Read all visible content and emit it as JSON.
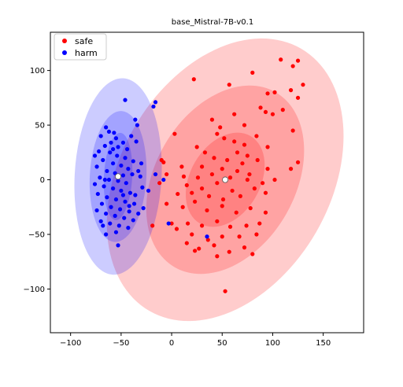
{
  "chart_data": {
    "type": "scatter",
    "title": "base_Mistral-7B-v0.1",
    "xlabel": "",
    "ylabel": "",
    "xlim": [
      -120,
      190
    ],
    "ylim": [
      -140,
      135
    ],
    "xticks": [
      -100,
      -50,
      0,
      50,
      100,
      150
    ],
    "yticks": [
      -100,
      -50,
      0,
      50,
      100
    ],
    "xtick_labels": [
      "−100",
      "−50",
      "0",
      "50",
      "100",
      "150"
    ],
    "ytick_labels": [
      "−100",
      "−50",
      "0",
      "50",
      "100"
    ],
    "legend": {
      "position": "top-left"
    },
    "grid": false,
    "series": [
      {
        "name": "safe",
        "color": "#ff0000",
        "center": [
          53,
          0
        ],
        "ellipses": [
          {
            "rx": 50,
            "ry": 32,
            "angle": 60,
            "opacity": 0.2
          },
          {
            "rx": 100,
            "ry": 64,
            "angle": 60,
            "opacity": 0.2
          },
          {
            "rx": 150,
            "ry": 96,
            "angle": 60,
            "opacity": 0.2
          }
        ],
        "points": [
          [
            108,
            110
          ],
          [
            120,
            104
          ],
          [
            125,
            109
          ],
          [
            130,
            87
          ],
          [
            118,
            82
          ],
          [
            22,
            92
          ],
          [
            57,
            87
          ],
          [
            80,
            98
          ],
          [
            95,
            79
          ],
          [
            102,
            80
          ],
          [
            125,
            75
          ],
          [
            88,
            66
          ],
          [
            93,
            62
          ],
          [
            100,
            60
          ],
          [
            110,
            64
          ],
          [
            62,
            60
          ],
          [
            40,
            55
          ],
          [
            72,
            50
          ],
          [
            48,
            48
          ],
          [
            120,
            45
          ],
          [
            72,
            32
          ],
          [
            95,
            30
          ],
          [
            3,
            42
          ],
          [
            45,
            42
          ],
          [
            52,
            38
          ],
          [
            62,
            35
          ],
          [
            84,
            40
          ],
          [
            25,
            30
          ],
          [
            33,
            25
          ],
          [
            65,
            25
          ],
          [
            75,
            22
          ],
          [
            42,
            20
          ],
          [
            55,
            18
          ],
          [
            70,
            15
          ],
          [
            85,
            18
          ],
          [
            -8,
            16
          ],
          [
            10,
            12
          ],
          [
            30,
            12
          ],
          [
            50,
            10
          ],
          [
            65,
            8
          ],
          [
            77,
            5
          ],
          [
            125,
            16
          ],
          [
            118,
            10
          ],
          [
            95,
            10
          ],
          [
            -5,
            5
          ],
          [
            12,
            3
          ],
          [
            26,
            2
          ],
          [
            40,
            5
          ],
          [
            58,
            2
          ],
          [
            75,
            0
          ],
          [
            90,
            -3
          ],
          [
            102,
            0
          ],
          [
            -12,
            -3
          ],
          [
            15,
            -5
          ],
          [
            30,
            -8
          ],
          [
            45,
            -3
          ],
          [
            60,
            -10
          ],
          [
            82,
            -8
          ],
          [
            6,
            -13
          ],
          [
            20,
            -12
          ],
          [
            37,
            -15
          ],
          [
            51,
            -18
          ],
          [
            68,
            -15
          ],
          [
            93,
            -12
          ],
          [
            -5,
            -22
          ],
          [
            11,
            -25
          ],
          [
            23,
            -20
          ],
          [
            35,
            -28
          ],
          [
            50,
            -24
          ],
          [
            64,
            -30
          ],
          [
            78,
            -26
          ],
          [
            93,
            -30
          ],
          [
            16,
            -40
          ],
          [
            30,
            -42
          ],
          [
            45,
            -38
          ],
          [
            58,
            -43
          ],
          [
            74,
            -42
          ],
          [
            87,
            -40
          ],
          [
            5,
            -45
          ],
          [
            20,
            -50
          ],
          [
            36,
            -55
          ],
          [
            50,
            -52
          ],
          [
            67,
            -52
          ],
          [
            84,
            -50
          ],
          [
            15,
            -58
          ],
          [
            27,
            -63
          ],
          [
            42,
            -60
          ],
          [
            57,
            -66
          ],
          [
            72,
            -62
          ],
          [
            23,
            -65
          ],
          [
            45,
            -70
          ],
          [
            80,
            -68
          ],
          [
            53,
            -102
          ],
          [
            0,
            -40
          ],
          [
            -19,
            -42
          ],
          [
            -10,
            18
          ]
        ]
      },
      {
        "name": "harm",
        "color": "#0000ff",
        "center": [
          -53,
          3
        ],
        "ellipses": [
          {
            "rx": 14,
            "ry": 40,
            "angle": -3,
            "opacity": 0.2
          },
          {
            "rx": 28,
            "ry": 60,
            "angle": -3,
            "opacity": 0.2
          },
          {
            "rx": 43,
            "ry": 90,
            "angle": -3,
            "opacity": 0.2
          }
        ],
        "points": [
          [
            -46,
            73
          ],
          [
            -16,
            71
          ],
          [
            -18,
            67
          ],
          [
            -36,
            55
          ],
          [
            -65,
            48
          ],
          [
            -62,
            44
          ],
          [
            -57,
            43
          ],
          [
            -34,
            50
          ],
          [
            -70,
            40
          ],
          [
            -55,
            38
          ],
          [
            -48,
            34
          ],
          [
            -60,
            34
          ],
          [
            -66,
            31
          ],
          [
            -53,
            30
          ],
          [
            -44,
            28
          ],
          [
            -35,
            35
          ],
          [
            -72,
            26
          ],
          [
            -61,
            25
          ],
          [
            -54,
            22
          ],
          [
            -46,
            20
          ],
          [
            -38,
            17
          ],
          [
            -30,
            15
          ],
          [
            -68,
            18
          ],
          [
            -58,
            15
          ],
          [
            -50,
            13
          ],
          [
            -43,
            10
          ],
          [
            -74,
            12
          ],
          [
            -64,
            8
          ],
          [
            -56,
            6
          ],
          [
            -48,
            4
          ],
          [
            -39,
            5
          ],
          [
            -31,
            3
          ],
          [
            -71,
            2
          ],
          [
            -62,
            0
          ],
          [
            -53,
            -1
          ],
          [
            -45,
            -3
          ],
          [
            -76,
            -4
          ],
          [
            -67,
            -6
          ],
          [
            -58,
            -8
          ],
          [
            -50,
            -10
          ],
          [
            -41,
            -12
          ],
          [
            -29,
            -7
          ],
          [
            -73,
            -13
          ],
          [
            -64,
            -16
          ],
          [
            -55,
            -18
          ],
          [
            -46,
            -20
          ],
          [
            -37,
            -22
          ],
          [
            -69,
            -22
          ],
          [
            -60,
            -25
          ],
          [
            -51,
            -27
          ],
          [
            -42,
            -29
          ],
          [
            -33,
            -31
          ],
          [
            -74,
            -28
          ],
          [
            -65,
            -31
          ],
          [
            -56,
            -33
          ],
          [
            -47,
            -35
          ],
          [
            -38,
            -37
          ],
          [
            -70,
            -38
          ],
          [
            -61,
            -40
          ],
          [
            -52,
            -42
          ],
          [
            -43,
            -44
          ],
          [
            -55,
            -48
          ],
          [
            -65,
            -50
          ],
          [
            -53,
            -60
          ],
          [
            -42,
            -24
          ],
          [
            -66,
            0
          ],
          [
            -58,
            28
          ],
          [
            -40,
            40
          ],
          [
            -33,
            8
          ],
          [
            -76,
            22
          ],
          [
            -68,
            -42
          ],
          [
            -48,
            -14
          ],
          [
            -36,
            -14
          ],
          [
            -28,
            -26
          ],
          [
            -23,
            -10
          ],
          [
            -16,
            5
          ],
          [
            -8,
            0
          ],
          [
            -3,
            -40
          ],
          [
            35,
            -52
          ]
        ]
      }
    ]
  }
}
